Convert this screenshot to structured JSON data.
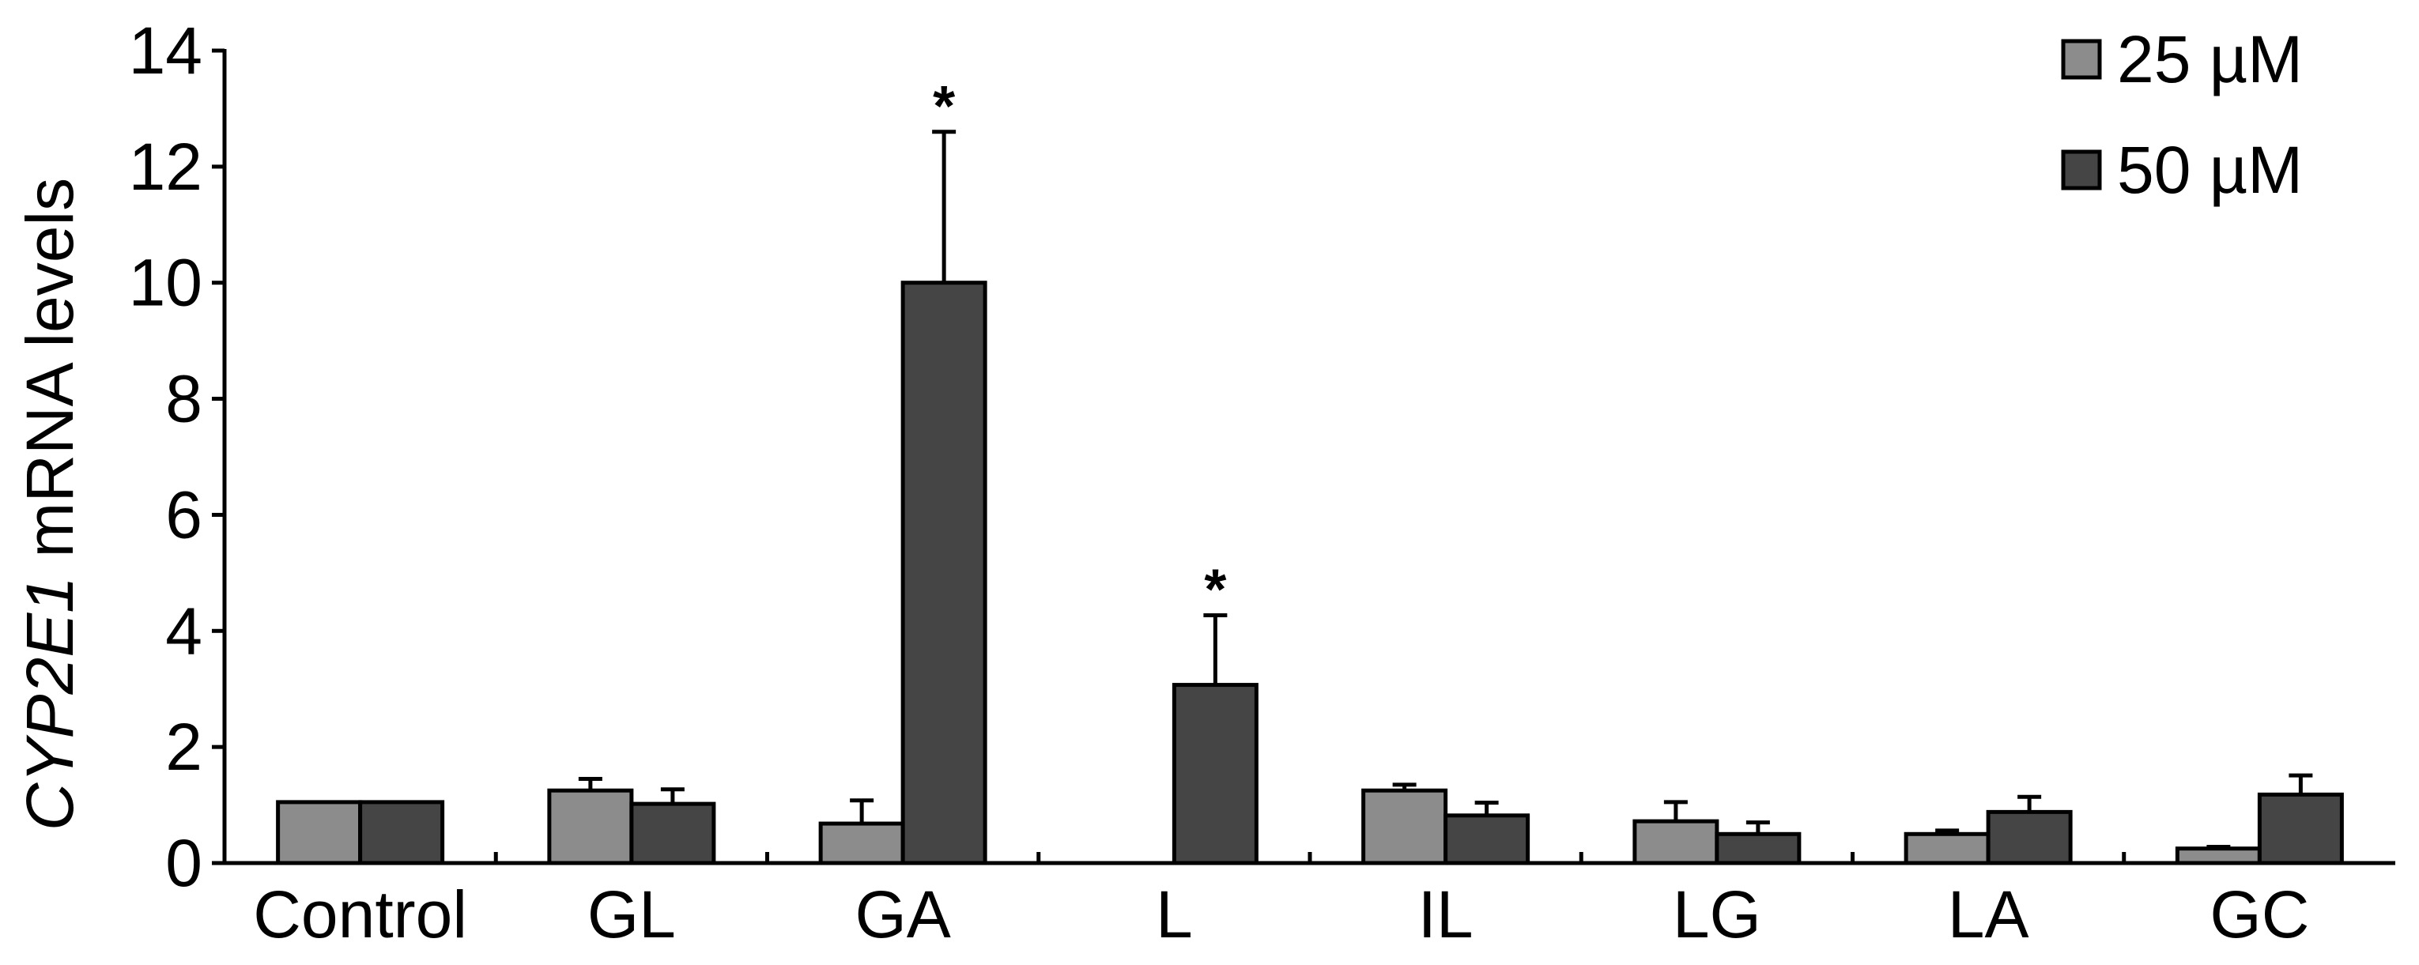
{
  "chart_data": {
    "type": "bar",
    "categories": [
      "Control",
      "GL",
      "GA",
      "L",
      "IL",
      "LG",
      "LA",
      "GC"
    ],
    "series": [
      {
        "name": "25 µM",
        "color": "#8c8c8c",
        "values": [
          1.05,
          1.25,
          0.68,
          0.0,
          1.25,
          0.72,
          0.5,
          0.25
        ],
        "errors": [
          0.0,
          0.2,
          0.4,
          0.0,
          0.1,
          0.33,
          0.06,
          0.03
        ],
        "annotations": [
          "",
          "",
          "",
          "",
          "",
          "",
          "",
          ""
        ]
      },
      {
        "name": "50 µM",
        "color": "#454545",
        "values": [
          1.05,
          1.02,
          10.0,
          3.07,
          0.82,
          0.5,
          0.88,
          1.18
        ],
        "errors": [
          0.0,
          0.25,
          2.6,
          1.2,
          0.22,
          0.2,
          0.26,
          0.33
        ],
        "annotations": [
          "",
          "",
          "*",
          "*",
          "",
          "",
          "",
          ""
        ]
      }
    ],
    "ylabel_italic": "CYP2E1",
    "ylabel_rest": " mRNA levels",
    "xlabel": "",
    "ylim": [
      0,
      14
    ],
    "yticks": [
      0,
      2,
      4,
      6,
      8,
      10,
      12,
      14
    ],
    "grid": false,
    "legend_position": "top-right"
  }
}
